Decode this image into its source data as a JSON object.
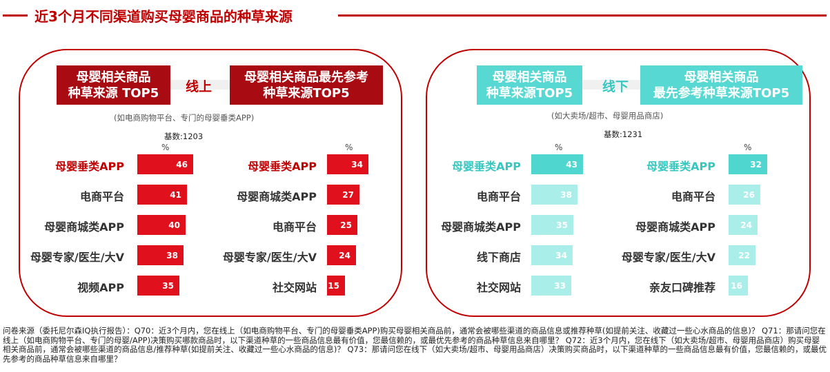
{
  "title": "近3个月不同渠道购买母婴商品的种草来源",
  "online": {
    "header_left": "母婴相关商品\n种草来源 TOP5",
    "mid_label": "线上",
    "header_right": "母婴相关商品最先参考\n种草来源TOP5",
    "note": "(如电商购物平台、专门的母婴垂类APP)",
    "base": "基数:1203",
    "pct_label": "%"
  },
  "offline": {
    "header_left": "母婴相关商品\n种草来源TOP5",
    "mid_label": "线下",
    "header_right": "母婴相关商品\n最先参考种草来源TOP5",
    "note": "(如大卖场/超市、母婴用品商店)",
    "base": "基数:1231",
    "pct_label": "%"
  },
  "colors": {
    "red_dark": "#a90b12",
    "red": "#e0101d",
    "teal": "#4fd6cf",
    "teal_light": "#aaeee9",
    "highlight_red": "#c00000",
    "highlight_teal": "#36c7c0"
  },
  "chart_data": [
    {
      "type": "bar",
      "title": "母婴相关商品种草来源 TOP5 (线上)",
      "categories": [
        "母婴垂类APP",
        "电商平台",
        "母婴商城类APP",
        "母婴专家/医生/大V",
        "视频APP"
      ],
      "values": [
        46,
        41,
        40,
        38,
        35
      ],
      "unit": "%"
    },
    {
      "type": "bar",
      "title": "母婴相关商品最先参考种草来源TOP5 (线上)",
      "categories": [
        "母婴垂类APP",
        "母婴商城类APP",
        "电商平台",
        "母婴专家/医生/大V",
        "社交网站"
      ],
      "values": [
        34,
        27,
        25,
        24,
        15
      ],
      "unit": "%"
    },
    {
      "type": "bar",
      "title": "母婴相关商品种草来源TOP5 (线下)",
      "categories": [
        "母婴垂类APP",
        "电商平台",
        "母婴商城类APP",
        "线下商店",
        "社交网站"
      ],
      "values": [
        43,
        38,
        35,
        34,
        33
      ],
      "unit": "%"
    },
    {
      "type": "bar",
      "title": "母婴相关商品最先参考种草来源TOP5 (线下)",
      "categories": [
        "母婴垂类APP",
        "电商平台",
        "母婴商城类APP",
        "母婴专家/医生/大V",
        "亲友口碑推荐"
      ],
      "values": [
        32,
        26,
        24,
        22,
        16
      ],
      "unit": "%"
    }
  ],
  "footer": "问卷来源（委托尼尔森IQ执行报告）：Q70：近3个月内，您在线上（如电商购物平台、专门的母婴垂类APP)购买母婴相关商品前，通常会被哪些渠道的商品信息或推荐种草(如提前关注、收藏过一些心水商品的信息)？ Q71：那请问您在线上（如电商购物平台、专门的母婴/APP)决策购买哪款商品时，以下渠道种草的一些商品信息最有价值，您最信赖的，或最优先参考的商品种草信息来自哪里？ Q72：近3个月内，您在线下（如大卖场/超市、母婴用品商店）购买母婴相关商品前，通常会被哪些渠道的商品信息/推荐种草(如提前关注、收藏过一些心水商品的信息)？ Q73：那请问您在线下（如大卖场/超市、母婴用品商店）决策购买商品时，以下渠道种草的一些商品信息最有价值，您最信赖的，或最优先参考的商品种草信息来自哪里？"
}
